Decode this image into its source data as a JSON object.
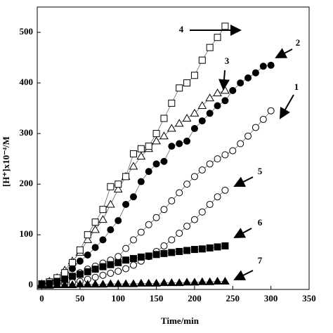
{
  "chart_data": {
    "type": "line",
    "x_label": "Time/min",
    "y_label": "[H⁺]x10⁻⁴/M",
    "xlim": [
      -6,
      350
    ],
    "ylim": [
      -8,
      550
    ],
    "xticks": [
      0,
      50,
      100,
      150,
      200,
      250,
      300,
      350
    ],
    "yticks": [
      0,
      100,
      200,
      300,
      400,
      500
    ],
    "series": [
      {
        "name": "1",
        "marker": "circle-open",
        "color": "#000000",
        "x": [
          0,
          10,
          20,
          30,
          40,
          50,
          60,
          70,
          80,
          90,
          100,
          110,
          120,
          130,
          140,
          150,
          160,
          170,
          180,
          190,
          200,
          210,
          220,
          230,
          240,
          250,
          260,
          270,
          280,
          290,
          300
        ],
        "values": [
          2,
          4,
          7,
          12,
          18,
          25,
          32,
          38,
          44,
          50,
          57,
          73,
          90,
          105,
          120,
          134,
          150,
          167,
          183,
          200,
          215,
          228,
          240,
          250,
          258,
          266,
          280,
          295,
          312,
          328,
          345
        ]
      },
      {
        "name": "2",
        "marker": "circle",
        "color": "#000000",
        "x": [
          0,
          10,
          20,
          30,
          40,
          50,
          60,
          70,
          80,
          90,
          100,
          110,
          120,
          130,
          140,
          150,
          160,
          170,
          180,
          190,
          200,
          210,
          220,
          230,
          240,
          250,
          260,
          270,
          280,
          290,
          300
        ],
        "values": [
          3,
          5,
          10,
          20,
          33,
          48,
          60,
          75,
          90,
          110,
          128,
          160,
          175,
          205,
          225,
          240,
          245,
          275,
          280,
          285,
          310,
          325,
          340,
          355,
          365,
          385,
          400,
          410,
          420,
          433,
          435
        ]
      },
      {
        "name": "3",
        "marker": "triangle-open",
        "color": "#000000",
        "x": [
          0,
          10,
          20,
          30,
          40,
          50,
          60,
          70,
          80,
          90,
          100,
          110,
          120,
          130,
          140,
          150,
          160,
          170,
          180,
          190,
          200,
          210,
          220,
          230,
          240
        ],
        "values": [
          3,
          8,
          15,
          30,
          48,
          65,
          90,
          110,
          130,
          160,
          190,
          215,
          235,
          255,
          270,
          285,
          295,
          310,
          320,
          330,
          340,
          355,
          370,
          380,
          385
        ]
      },
      {
        "name": "4",
        "marker": "square-open",
        "color": "#000000",
        "x": [
          0,
          10,
          20,
          30,
          40,
          50,
          60,
          70,
          80,
          90,
          100,
          110,
          120,
          130,
          140,
          150,
          160,
          170,
          180,
          190,
          200,
          210,
          220,
          230,
          240
        ],
        "values": [
          3,
          7,
          15,
          25,
          45,
          70,
          100,
          125,
          150,
          195,
          200,
          215,
          260,
          270,
          275,
          300,
          330,
          360,
          390,
          400,
          415,
          445,
          470,
          490,
          512
        ]
      },
      {
        "name": "5",
        "marker": "circle-open",
        "color": "#000000",
        "x": [
          0,
          10,
          20,
          30,
          40,
          50,
          60,
          70,
          80,
          90,
          100,
          110,
          120,
          130,
          140,
          150,
          160,
          170,
          180,
          190,
          200,
          210,
          220,
          230,
          240
        ],
        "values": [
          2,
          2,
          3,
          4,
          6,
          8,
          12,
          16,
          20,
          24,
          28,
          33,
          40,
          48,
          57,
          67,
          78,
          90,
          103,
          117,
          130,
          145,
          160,
          175,
          188
        ]
      },
      {
        "name": "6",
        "marker": "square",
        "color": "#000000",
        "x": [
          0,
          10,
          20,
          30,
          40,
          50,
          60,
          70,
          80,
          90,
          100,
          110,
          120,
          130,
          140,
          150,
          160,
          170,
          180,
          190,
          200,
          210,
          220,
          230,
          240
        ],
        "values": [
          2,
          4,
          8,
          12,
          18,
          22,
          27,
          32,
          37,
          41,
          45,
          50,
          53,
          56,
          58,
          61,
          63,
          65,
          67,
          69,
          71,
          72,
          74,
          76,
          78
        ]
      },
      {
        "name": "7",
        "marker": "triangle",
        "color": "#000000",
        "x": [
          0,
          10,
          20,
          30,
          40,
          50,
          60,
          70,
          80,
          90,
          100,
          110,
          120,
          130,
          140,
          150,
          160,
          170,
          180,
          190,
          200,
          210,
          220,
          230,
          240
        ],
        "values": [
          0,
          0,
          1,
          1,
          1,
          2,
          2,
          2,
          2,
          3,
          3,
          3,
          3,
          4,
          4,
          4,
          5,
          5,
          5,
          6,
          6,
          7,
          7,
          8,
          8
        ]
      }
    ]
  }
}
